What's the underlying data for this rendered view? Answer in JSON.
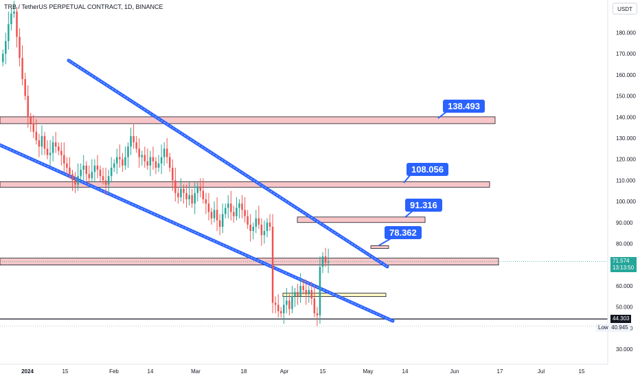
{
  "header": {
    "title": "TRB / TetherUS PERPETUAL CONTRACT, 1D, BINANCE",
    "currency": "USDT"
  },
  "annotations": {
    "resistance_1": "138.493",
    "resistance_2": "108.056",
    "resistance_3": "91.316",
    "resistance_4": "78.362"
  },
  "price_axis": {
    "last_price": "71.574",
    "countdown": "13:13:50",
    "support_value": "44.303",
    "low_label": "Low",
    "low_value": "40.945"
  },
  "colors": {
    "up": "#26a69a",
    "down": "#ef5350",
    "channel": "#2962ff",
    "zone_fill": "#f8c6c8",
    "zone_fill_yellow": "#fff3c4",
    "bubble": "#2962ff"
  },
  "chart_data": {
    "type": "candlestick",
    "symbol": "TRB / TetherUS PERPETUAL CONTRACT",
    "interval": "1D",
    "exchange": "BINANCE",
    "ylim": [
      25,
      195
    ],
    "yticks": [
      "30.000",
      "40.000",
      "50.000",
      "60.000",
      "70.000",
      "80.000",
      "90.000",
      "100.000",
      "110.000",
      "120.000",
      "130.000",
      "140.000",
      "150.000",
      "160.000",
      "170.000",
      "180.000"
    ],
    "xticks": [
      "2024",
      "15",
      "Feb",
      "14",
      "Mar",
      "18",
      "Apr",
      "15",
      "May",
      "14",
      "Jun",
      "17",
      "Jul",
      "15"
    ],
    "horizontal_zones": [
      {
        "label": "138.493",
        "value": 138.493
      },
      {
        "label": "108.056",
        "value": 108.056
      },
      {
        "label": "91.316",
        "value": 91.316
      },
      {
        "label": "78.362",
        "value": 78.362
      },
      {
        "value": 71.5
      },
      {
        "value": 55.7
      }
    ],
    "support_line": 44.303,
    "last_price": 71.574,
    "low": 40.945,
    "closes": [
      170,
      176,
      184,
      189,
      190,
      178,
      168,
      158,
      150,
      140,
      137,
      133,
      129,
      126,
      131,
      125,
      122,
      123,
      128,
      126,
      124,
      122,
      118,
      116,
      113,
      110,
      108,
      112,
      115,
      117,
      113,
      111,
      114,
      117,
      115,
      112,
      110,
      108,
      112,
      116,
      118,
      121,
      120,
      117,
      121,
      126,
      131,
      128,
      125,
      121,
      122,
      119,
      117,
      121,
      119,
      116,
      118,
      121,
      125,
      121,
      116,
      110,
      104,
      102,
      106,
      104,
      101,
      103,
      99,
      104,
      107,
      105,
      101,
      99,
      95,
      92,
      96,
      91,
      88,
      94,
      97,
      99,
      95,
      93,
      97,
      99,
      96,
      93,
      89,
      86,
      88,
      92,
      89,
      84,
      86,
      90,
      88,
      52,
      51,
      48,
      47,
      51,
      53,
      49,
      55,
      57,
      55,
      60,
      58,
      56,
      58,
      54,
      47,
      46,
      69,
      74,
      71,
      71.574
    ]
  }
}
